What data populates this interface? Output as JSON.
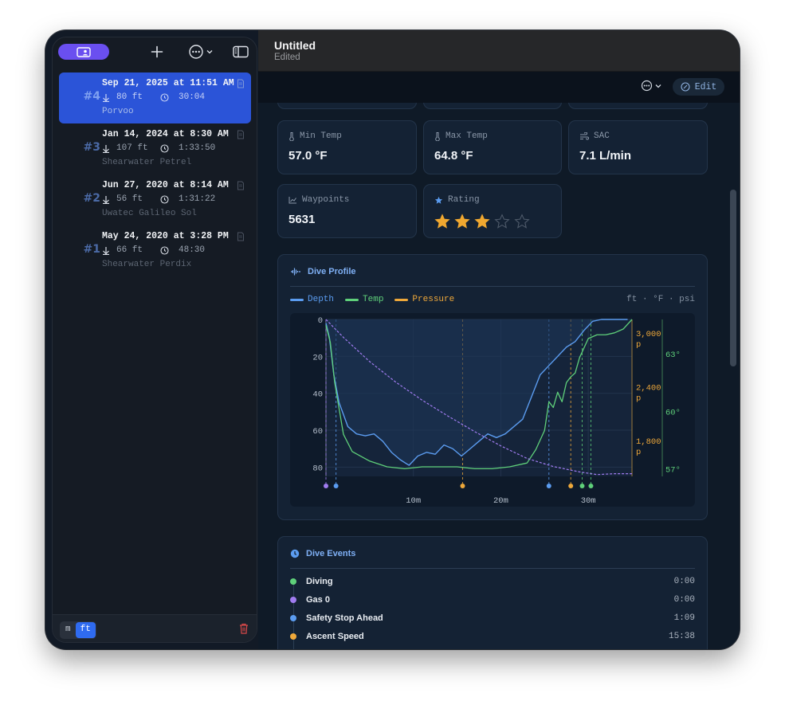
{
  "window": {
    "title": "Untitled",
    "subtitle": "Edited"
  },
  "toolbar": {
    "edit_label": "Edit"
  },
  "sidebar": {
    "dives": [
      {
        "number": "#4",
        "date": "Sep 21, 2025 at 11:51 AM",
        "depth": "80 ft",
        "duration": "30:04",
        "computer": "Porvoo",
        "selected": true
      },
      {
        "number": "#3",
        "date": "Jan 14, 2024 at 8:30 AM",
        "depth": "107 ft",
        "duration": "1:33:50",
        "computer": "Shearwater Petrel",
        "selected": false
      },
      {
        "number": "#2",
        "date": "Jun 27, 2020 at 8:14 AM",
        "depth": "56 ft",
        "duration": "1:31:22",
        "computer": "Uwatec Galileo Sol",
        "selected": false
      },
      {
        "number": "#1",
        "date": "May 24, 2020 at 3:28 PM",
        "depth": "66 ft",
        "duration": "48:30",
        "computer": "Shearwater Perdix",
        "selected": false
      }
    ],
    "units": {
      "metric": "m",
      "imperial": "ft",
      "selected": "ft"
    }
  },
  "stats": {
    "min_temp": {
      "label": "Min Temp",
      "value": "57.0 °F",
      "icon": "thermometer-icon"
    },
    "max_temp": {
      "label": "Max Temp",
      "value": "64.8 °F",
      "icon": "thermometer-icon"
    },
    "sac": {
      "label": "SAC",
      "value": "7.1 L/min",
      "icon": "wind-icon"
    },
    "waypoints": {
      "label": "Waypoints",
      "value": "5631",
      "icon": "chart-line-icon"
    },
    "rating": {
      "label": "Rating",
      "value": 3,
      "max": 5,
      "icon": "star-icon"
    }
  },
  "profile": {
    "title": "Dive Profile",
    "units_note": "ft · °F · psi",
    "legend": {
      "depth": "Depth",
      "temp": "Temp",
      "pressure": "Pressure"
    },
    "colors": {
      "depth": "#5b9cf0",
      "temp": "#5fd07a",
      "pressure": "#eea83a",
      "gas": "#a07cf0",
      "plot_bg": "#16263d"
    }
  },
  "chart_data": {
    "type": "line",
    "x_unit": "minutes",
    "xlim": [
      0,
      35
    ],
    "x_ticks": [
      "10m",
      "20m",
      "30m"
    ],
    "x_tick_values": [
      10,
      20,
      30
    ],
    "y_depth": {
      "ticks": [
        "0",
        "20",
        "40",
        "60",
        "80"
      ],
      "tick_values": [
        0,
        20,
        40,
        60,
        80
      ],
      "lim": [
        0,
        85
      ],
      "inverted": true
    },
    "y_pressure": {
      "ticks": [
        "3,000",
        "2,400",
        "1,800"
      ],
      "unit_suffix": "p",
      "tick_values": [
        3000,
        2400,
        1800
      ]
    },
    "y_temp": {
      "ticks": [
        "63°",
        "60°",
        "57°"
      ],
      "tick_values": [
        63,
        60,
        57
      ]
    },
    "series": [
      {
        "name": "Depth",
        "x": [
          0,
          0.4,
          0.9,
          1.5,
          2.5,
          3.5,
          4.5,
          5.5,
          6.5,
          7.5,
          8.5,
          9.5,
          10.5,
          11.5,
          12.5,
          13.5,
          14.5,
          15.5,
          16.5,
          17.5,
          18.5,
          19.5,
          20.5,
          21.5,
          22.5,
          23.5,
          24.5,
          25.5,
          26.5,
          27.5,
          28.5,
          29.5,
          30.5,
          31.5,
          32.5,
          33.5,
          34.5
        ],
        "values": [
          2,
          10,
          30,
          45,
          58,
          62,
          63,
          62,
          66,
          72,
          76,
          79,
          74,
          72,
          73,
          68,
          70,
          74,
          70,
          66,
          62,
          64,
          62,
          58,
          54,
          42,
          30,
          25,
          20,
          15,
          12,
          6,
          1,
          0,
          0,
          0,
          0
        ]
      },
      {
        "name": "Temp",
        "x": [
          0,
          0.5,
          1,
          2,
          3,
          5,
          7,
          9,
          11,
          13,
          15,
          17,
          19,
          21,
          23,
          24,
          25,
          25.5,
          26,
          26.5,
          27,
          27.5,
          28,
          28.5,
          29,
          30,
          31,
          32,
          33,
          34,
          35
        ],
        "values": [
          64.5,
          63.6,
          61.5,
          58.8,
          57.9,
          57.4,
          57.1,
          57.0,
          57.1,
          57.1,
          57.1,
          57.0,
          57.0,
          57.1,
          57.3,
          58.0,
          59.0,
          60.5,
          60.2,
          61.0,
          60.5,
          61.5,
          61.8,
          62.0,
          62.8,
          63.8,
          64.0,
          64.0,
          64.1,
          64.3,
          64.8
        ]
      },
      {
        "name": "Pressure",
        "x": [
          0,
          2,
          5,
          8,
          11,
          14,
          17,
          20,
          23,
          26,
          29,
          31,
          33,
          35
        ],
        "values": [
          3150,
          2950,
          2680,
          2450,
          2250,
          2070,
          1900,
          1740,
          1600,
          1510,
          1450,
          1420,
          1430,
          1430
        ]
      }
    ],
    "event_markers": [
      {
        "x": 0.0,
        "type": "gas"
      },
      {
        "x": 1.15,
        "type": "depth"
      },
      {
        "x": 15.63,
        "type": "pressure"
      },
      {
        "x": 25.5,
        "type": "depth"
      },
      {
        "x": 28.0,
        "type": "pressure"
      },
      {
        "x": 29.3,
        "type": "temp"
      },
      {
        "x": 30.3,
        "type": "temp"
      }
    ]
  },
  "events": {
    "title": "Dive Events",
    "items": [
      {
        "name": "Diving",
        "time": "0:00",
        "color": "#5fd07a"
      },
      {
        "name": "Gas 0",
        "time": "0:00",
        "color": "#a07cf0"
      },
      {
        "name": "Safety Stop Ahead",
        "time": "1:09",
        "color": "#5b9cf0"
      },
      {
        "name": "Ascent Speed",
        "time": "15:38",
        "color": "#eea83a"
      }
    ]
  }
}
